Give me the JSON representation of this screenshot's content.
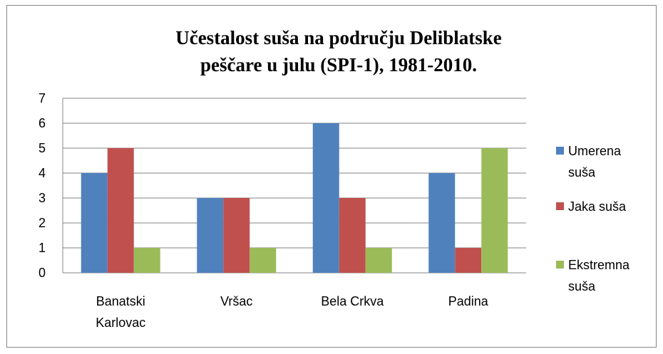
{
  "chart_data": {
    "type": "bar",
    "title": "Učestalost suša na području Deliblatske peščare u julu (SPI-1), 1981-2010.",
    "categories": [
      "Banatski Karlovac",
      "Vršac",
      "Bela Crkva",
      "Padina"
    ],
    "series": [
      {
        "name": "Umerena suša",
        "color": "#4f81bd",
        "values": [
          4,
          3,
          6,
          4
        ]
      },
      {
        "name": "Jaka suša",
        "color": "#c0504d",
        "values": [
          5,
          3,
          3,
          1
        ]
      },
      {
        "name": "Ekstremna suša",
        "color": "#9bbb59",
        "values": [
          1,
          1,
          1,
          5
        ]
      }
    ],
    "ylim": [
      0,
      7
    ],
    "yticks": [
      0,
      1,
      2,
      3,
      4,
      5,
      6,
      7
    ],
    "grid": true,
    "legend": "right"
  }
}
